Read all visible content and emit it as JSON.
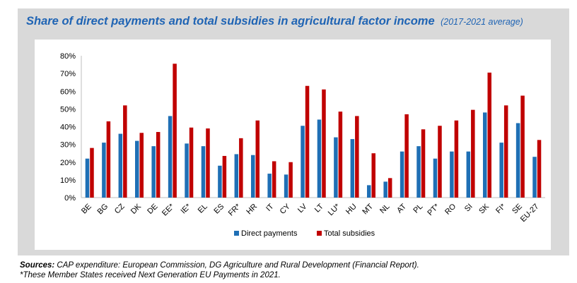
{
  "title": "Share of direct payments and total subsidies in agricultural factor income",
  "subtitle": "(2017-2021 average)",
  "sources_label": "Sources:",
  "sources_text": "CAP expenditure: European Commission, DG Agriculture and Rural Development (Financial Report).",
  "footnote": "*These Member States received Next Generation EU Payments in 2021.",
  "colors": {
    "direct": "#1f6fb5",
    "total": "#c00000",
    "panel": "#d9d9d9"
  },
  "chart_data": {
    "type": "bar",
    "title": "Share of direct payments and total subsidies in agricultural factor income",
    "categories": [
      "BE",
      "BG",
      "CZ",
      "DK",
      "DE",
      "EE*",
      "IE*",
      "EL",
      "ES",
      "FR*",
      "HR",
      "IT",
      "CY",
      "LV",
      "LT",
      "LU*",
      "HU",
      "MT",
      "NL",
      "AT",
      "PL",
      "PT*",
      "RO",
      "SI",
      "SK",
      "FI*",
      "SE",
      "EU-27"
    ],
    "series": [
      {
        "name": "Direct payments",
        "values": [
          22,
          31,
          36,
          32,
          29,
          46,
          30.5,
          29,
          18,
          24.5,
          24,
          13.5,
          13,
          40.5,
          44,
          34,
          33,
          7,
          9,
          26,
          29,
          22,
          26,
          26,
          48,
          31,
          42,
          23
        ]
      },
      {
        "name": "Total subsidies",
        "values": [
          28,
          43,
          52,
          36.5,
          37,
          75.5,
          39.5,
          39,
          23.5,
          33.5,
          43.5,
          20.5,
          20,
          63,
          61,
          48.5,
          46,
          25,
          11,
          47,
          38.5,
          40.5,
          43.5,
          49.5,
          70.5,
          52,
          57.5,
          32.5
        ]
      }
    ],
    "y_ticks": [
      "0%",
      "10%",
      "20%",
      "30%",
      "40%",
      "50%",
      "60%",
      "70%",
      "80%"
    ],
    "ylim": [
      0,
      80
    ],
    "grid": false,
    "legend_position": "bottom"
  }
}
